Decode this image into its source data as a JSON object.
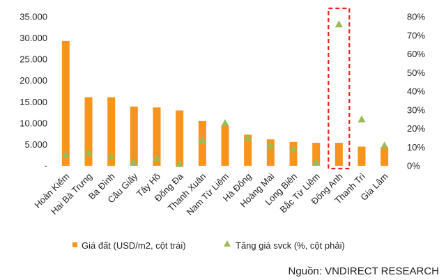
{
  "chart_data": {
    "type": "bar",
    "categories": [
      "Hoàn Kiếm",
      "Hai Bà Trưng",
      "Ba Đình",
      "Cầu Giấy",
      "Tây Hồ",
      "Đống Đa",
      "Thanh Xuân",
      "Nam Từ Liêm",
      "Hà Đông",
      "Hoàng Mai",
      "Long Biên",
      "Bắc Từ Liêm",
      "Đông Anh",
      "Thanh Trì",
      "Gia Lâm"
    ],
    "series": [
      {
        "name": "Giá đất (USD/m2, cột trái)",
        "type": "bar",
        "axis": "left",
        "color": "#f7941d",
        "values": [
          29300,
          16100,
          16100,
          13900,
          13700,
          13000,
          10500,
          9500,
          7300,
          6200,
          5600,
          5400,
          5400,
          4500,
          4400
        ]
      },
      {
        "name": "Tăng giá svck (%, cột phải)",
        "type": "scatter",
        "marker": "triangle",
        "axis": "right",
        "color": "#9bbb59",
        "values": [
          6,
          7,
          5,
          2,
          4,
          1,
          14,
          23,
          15,
          11,
          9,
          2,
          76,
          25,
          11
        ]
      }
    ],
    "y_left": {
      "min": 0,
      "max": 35000,
      "step": 5000,
      "tick_labels": [
        "-",
        "5.000",
        "10.000",
        "15.000",
        "20.000",
        "25.000",
        "30.000",
        "35.000"
      ]
    },
    "y_right": {
      "min": 0,
      "max": 80,
      "step": 10,
      "tick_labels": [
        "0%",
        "10%",
        "20%",
        "30%",
        "40%",
        "50%",
        "60%",
        "70%",
        "80%"
      ]
    },
    "highlight": {
      "category": "Đông Anh",
      "style": "dashed-box",
      "color": "#e8231f"
    },
    "grid": false,
    "legend_position": "bottom"
  },
  "source": "Nguồn: VNDIRECT RESEARCH"
}
